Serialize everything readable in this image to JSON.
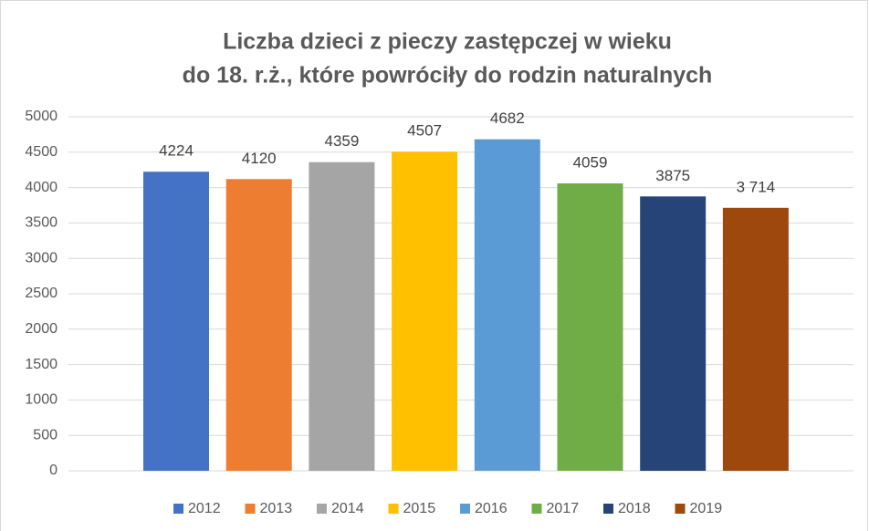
{
  "chart_data": {
    "type": "bar",
    "title": [
      "Liczba dzieci z pieczy zastępczej w wieku",
      "do 18. r.ż., które powróciły do rodzin naturalnych"
    ],
    "categories": [
      "2012",
      "2013",
      "2014",
      "2015",
      "2016",
      "2017",
      "2018",
      "2019"
    ],
    "values": [
      4224,
      4120,
      4359,
      4507,
      4682,
      4059,
      3875,
      3714
    ],
    "value_labels": [
      "4224",
      "4120",
      "4359",
      "4507",
      "4682",
      "4059",
      "3875",
      "3 714"
    ],
    "colors": [
      "#4472c4",
      "#ed7d31",
      "#a5a5a5",
      "#ffc000",
      "#5b9bd5",
      "#70ad47",
      "#264478",
      "#9e480e"
    ],
    "ylim": [
      0,
      5000
    ],
    "yticks": [
      0,
      500,
      1000,
      1500,
      2000,
      2500,
      3000,
      3500,
      4000,
      4500,
      5000
    ],
    "grid": true,
    "legend": "bottom"
  }
}
